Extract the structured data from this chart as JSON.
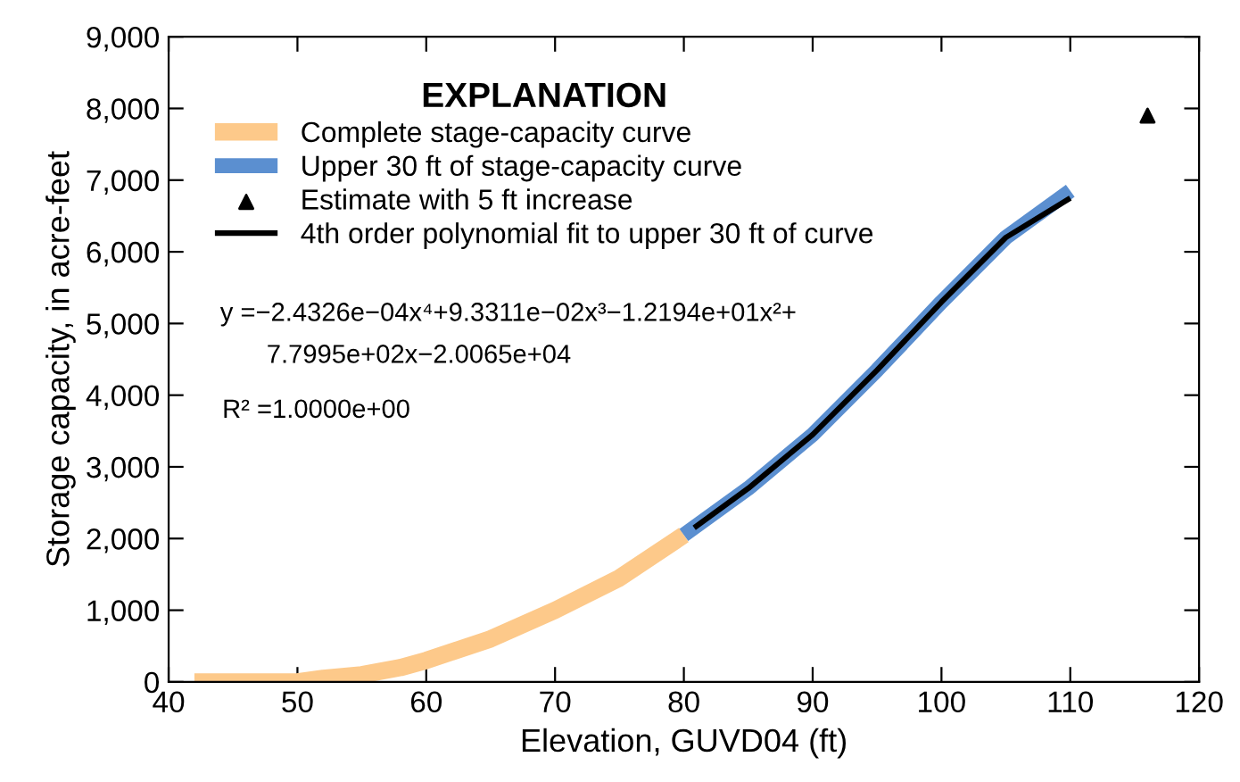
{
  "chart_data": {
    "type": "line",
    "xlabel": "Elevation, GUVD04 (ft)",
    "ylabel": "Storage capacity, in acre-feet",
    "legend_title": "EXPLANATION",
    "legend": "top left",
    "grid": false,
    "xlim": [
      40,
      120
    ],
    "xticks": [
      40,
      50,
      60,
      70,
      80,
      90,
      100,
      110,
      120
    ],
    "ylim": [
      0,
      9000
    ],
    "yticks": [
      {
        "value": 0,
        "label": "0"
      },
      {
        "value": 1000,
        "label": "1,000"
      },
      {
        "value": 2000,
        "label": "2,000"
      },
      {
        "value": 3000,
        "label": "3,000"
      },
      {
        "value": 4000,
        "label": "4,000"
      },
      {
        "value": 5000,
        "label": "5,000"
      },
      {
        "value": 6000,
        "label": "6,000"
      },
      {
        "value": 7000,
        "label": "7,000"
      },
      {
        "value": 8000,
        "label": "8,000"
      },
      {
        "value": 9000,
        "label": "9,000"
      }
    ],
    "series": [
      {
        "name": "Complete stage-capacity curve",
        "color": "#fdc98a",
        "line_style": "solid",
        "x": [
          42,
          45,
          50,
          52,
          55,
          58,
          60,
          65,
          70,
          75,
          80
        ],
        "values": [
          0,
          0,
          0,
          50,
          100,
          200,
          300,
          600,
          1000,
          1450,
          2050
        ]
      },
      {
        "name": "Upper 30 ft of stage-capacity curve",
        "color": "#5b8fd0",
        "line_style": "solid",
        "x": [
          80,
          85,
          90,
          95,
          100,
          105,
          110
        ],
        "values": [
          2050,
          2700,
          3450,
          4350,
          5300,
          6200,
          6850
        ]
      },
      {
        "name": "Estimate with 5 ft increase",
        "type": "scatter",
        "marker": "triangle",
        "color": "#000000",
        "x": [
          116
        ],
        "values": [
          7900
        ]
      },
      {
        "name": "4th order polynomial fit to upper 30 ft of curve",
        "color": "#000000",
        "line_style": "solid",
        "x": [
          80.8,
          85,
          90,
          95,
          100,
          105,
          110
        ],
        "values": [
          2150,
          2700,
          3450,
          4350,
          5300,
          6200,
          6750
        ]
      }
    ],
    "annotations": [
      "y =−2.4326e−04x⁴+9.3311e−02x³−1.2194e+01x²+",
      "7.7995e+02x−2.0065e+04",
      "R² =1.0000e+00"
    ]
  }
}
